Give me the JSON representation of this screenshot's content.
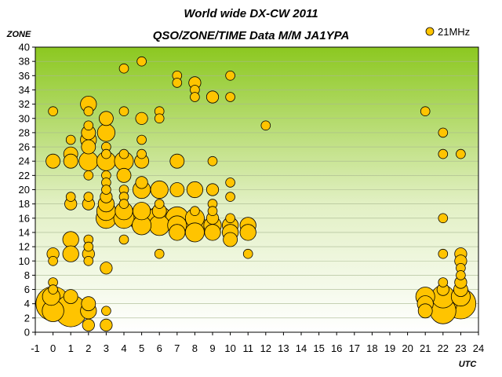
{
  "chart_data": {
    "type": "scatter",
    "title": "World wide DX-CW 2011",
    "subtitle": "QSO/ZONE/TIME Data M/M JA1YPA",
    "ylabel": "ZONE",
    "xlabel": "UTC",
    "xlim": [
      -1,
      24
    ],
    "ylim": [
      0,
      40
    ],
    "x_ticks": [
      -1,
      0,
      1,
      2,
      3,
      4,
      5,
      6,
      7,
      8,
      9,
      10,
      11,
      12,
      13,
      14,
      15,
      16,
      17,
      18,
      19,
      20,
      21,
      22,
      23,
      24
    ],
    "y_ticks": [
      0,
      2,
      4,
      6,
      8,
      10,
      12,
      14,
      16,
      18,
      20,
      22,
      24,
      26,
      28,
      30,
      32,
      34,
      36,
      38,
      40
    ],
    "grid": "horizontal",
    "background": "green-to-white vertical gradient",
    "legend_position": "top-right",
    "colors": {
      "marker_fill": "#FFC400",
      "marker_stroke": "#000000",
      "grid": "#a8b890"
    },
    "series": [
      {
        "name": "21MHz",
        "color": "#FFC400",
        "points": [
          [
            0,
            31,
            1
          ],
          [
            0,
            24,
            3
          ],
          [
            0,
            11,
            2
          ],
          [
            0,
            10,
            1
          ],
          [
            0,
            7,
            1
          ],
          [
            0,
            6,
            1
          ],
          [
            -0.1,
            5,
            5
          ],
          [
            0,
            4,
            22
          ],
          [
            0,
            3,
            8
          ],
          [
            1,
            27,
            1
          ],
          [
            1,
            25,
            3
          ],
          [
            1,
            24,
            3
          ],
          [
            1,
            19,
            1
          ],
          [
            1,
            18,
            2
          ],
          [
            1,
            13,
            4
          ],
          [
            1,
            11,
            4
          ],
          [
            1,
            5,
            3
          ],
          [
            1,
            3,
            19
          ],
          [
            2,
            32,
            4
          ],
          [
            2,
            31,
            1
          ],
          [
            2,
            29,
            1
          ],
          [
            2,
            28,
            3
          ],
          [
            2,
            27,
            4
          ],
          [
            2,
            26,
            3
          ],
          [
            2,
            24,
            6
          ],
          [
            2,
            22,
            1
          ],
          [
            2,
            19,
            1
          ],
          [
            2,
            18,
            2
          ],
          [
            2,
            13,
            1
          ],
          [
            2,
            12,
            1
          ],
          [
            2,
            11,
            2
          ],
          [
            2,
            10,
            1
          ],
          [
            2,
            4,
            3
          ],
          [
            2,
            3,
            4
          ],
          [
            2,
            1,
            2
          ],
          [
            3,
            30,
            3
          ],
          [
            3,
            28,
            5
          ],
          [
            3,
            26,
            1
          ],
          [
            3,
            25,
            1
          ],
          [
            3,
            24,
            6
          ],
          [
            3,
            22,
            1
          ],
          [
            3,
            21,
            1
          ],
          [
            3,
            20,
            1
          ],
          [
            3,
            19,
            2
          ],
          [
            3,
            18,
            4
          ],
          [
            3,
            17,
            6
          ],
          [
            3,
            16,
            7
          ],
          [
            3,
            9,
            2
          ],
          [
            3,
            3,
            1
          ],
          [
            3,
            1,
            2
          ],
          [
            4,
            37,
            1
          ],
          [
            4,
            31,
            1
          ],
          [
            4,
            25,
            1
          ],
          [
            4,
            24,
            6
          ],
          [
            4,
            22,
            3
          ],
          [
            4,
            20,
            1
          ],
          [
            4,
            19,
            1
          ],
          [
            4,
            18,
            1
          ],
          [
            4,
            17,
            5
          ],
          [
            4,
            16,
            7
          ],
          [
            4,
            13,
            1
          ],
          [
            5,
            38,
            1
          ],
          [
            5,
            30,
            2
          ],
          [
            5,
            27,
            1
          ],
          [
            5,
            25,
            1
          ],
          [
            5,
            24,
            3
          ],
          [
            5,
            21,
            2
          ],
          [
            5,
            20,
            5
          ],
          [
            5,
            17,
            5
          ],
          [
            5,
            16,
            12
          ],
          [
            5,
            15,
            6
          ],
          [
            6,
            31,
            1
          ],
          [
            6,
            30,
            1
          ],
          [
            6,
            20,
            5
          ],
          [
            6,
            18,
            1
          ],
          [
            6,
            17,
            3
          ],
          [
            6,
            16,
            10
          ],
          [
            6,
            15,
            7
          ],
          [
            6,
            11,
            1
          ],
          [
            7,
            36,
            1
          ],
          [
            7,
            35,
            1
          ],
          [
            7,
            24,
            3
          ],
          [
            7,
            20,
            3
          ],
          [
            7,
            16,
            9
          ],
          [
            7,
            15,
            6
          ],
          [
            7,
            14,
            4
          ],
          [
            8,
            35,
            2
          ],
          [
            8,
            34,
            1
          ],
          [
            8,
            33,
            1
          ],
          [
            8,
            20,
            4
          ],
          [
            8,
            17,
            1
          ],
          [
            8,
            16,
            6
          ],
          [
            8,
            15,
            9
          ],
          [
            8,
            14,
            6
          ],
          [
            9,
            33,
            2
          ],
          [
            9,
            24,
            1
          ],
          [
            9,
            20,
            2
          ],
          [
            9,
            18,
            1
          ],
          [
            9,
            17,
            1
          ],
          [
            9,
            16,
            2
          ],
          [
            9,
            15,
            5
          ],
          [
            9,
            14,
            4
          ],
          [
            10,
            36,
            1
          ],
          [
            10,
            33,
            1
          ],
          [
            10,
            21,
            1
          ],
          [
            10,
            19,
            1
          ],
          [
            10,
            16,
            1
          ],
          [
            10,
            15,
            4
          ],
          [
            10,
            14,
            4
          ],
          [
            10,
            13,
            3
          ],
          [
            11,
            15,
            4
          ],
          [
            11,
            14,
            4
          ],
          [
            11,
            11,
            1
          ],
          [
            12,
            29,
            1
          ],
          [
            21,
            31,
            1
          ],
          [
            21,
            5,
            6
          ],
          [
            21,
            4,
            4
          ],
          [
            21,
            3,
            3
          ],
          [
            22,
            28,
            1
          ],
          [
            22,
            25,
            1
          ],
          [
            22,
            16,
            1
          ],
          [
            22,
            11,
            1
          ],
          [
            22,
            7,
            1
          ],
          [
            22,
            6,
            2
          ],
          [
            22,
            5,
            9
          ],
          [
            22,
            4,
            14
          ],
          [
            22,
            3,
            12
          ],
          [
            23,
            25,
            1
          ],
          [
            23,
            11,
            2
          ],
          [
            23,
            10,
            2
          ],
          [
            23,
            9,
            1
          ],
          [
            23,
            8,
            1
          ],
          [
            23,
            7,
            2
          ],
          [
            23,
            6,
            3
          ],
          [
            23,
            5,
            6
          ],
          [
            23,
            4,
            17
          ]
        ]
      }
    ]
  }
}
